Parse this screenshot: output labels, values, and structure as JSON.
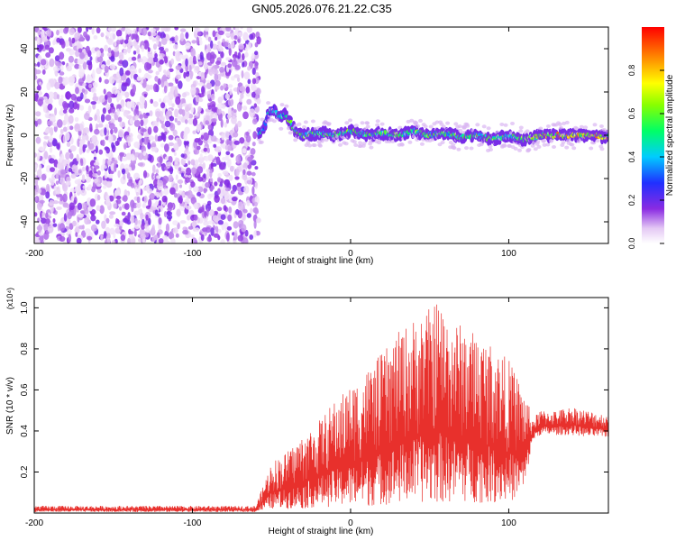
{
  "title": "GN05.2026.076.21.22.C35",
  "chart_data": [
    {
      "type": "heatmap",
      "xlabel": "Height of straight line (km)",
      "ylabel": "Frequency (Hz)",
      "xlim": [
        -200,
        163
      ],
      "ylim": [
        -50,
        50
      ],
      "xticks": [
        -200,
        -100,
        0,
        100
      ],
      "yticks": [
        -40,
        -20,
        0,
        20,
        40
      ],
      "colorbar": {
        "label": "Normalized spectral amplitude",
        "range": [
          0,
          1
        ],
        "ticks": [
          0.0,
          0.2,
          0.4,
          0.6,
          0.8
        ],
        "colormap": "rainbow (white-violet-blue-cyan-green-yellow-red)"
      },
      "noise_region_x": [
        -200,
        -58
      ],
      "signal_track": {
        "x": [
          -58,
          -55,
          -52,
          -48,
          -45,
          -42,
          -38,
          -35,
          -30,
          -20,
          -10,
          0,
          10,
          20,
          30,
          40,
          50,
          60,
          70,
          80,
          90,
          100,
          110,
          120,
          130,
          140,
          150,
          163
        ],
        "freq": [
          1,
          3,
          10,
          12,
          8,
          10,
          6,
          2,
          0,
          1,
          0,
          2,
          0,
          1,
          0,
          2,
          0,
          1,
          -1,
          0,
          -2,
          0,
          -2,
          0,
          0,
          0,
          0,
          -1
        ]
      }
    },
    {
      "type": "line",
      "xlabel": "Height of straight line (km)",
      "ylabel": "SNR (10 * v/v)",
      "multiplier": "(x10⁴)",
      "xlim": [
        -200,
        163
      ],
      "ylim": [
        0,
        1.05
      ],
      "xticks": [
        -200,
        -100,
        0,
        100
      ],
      "yticks": [
        0.2,
        0.4,
        0.6,
        0.8,
        1.0
      ],
      "color": "#e8302c",
      "envelope": {
        "x": [
          -200,
          -60,
          -50,
          -40,
          -30,
          -20,
          -10,
          0,
          10,
          20,
          30,
          40,
          50,
          55,
          60,
          70,
          80,
          90,
          100,
          110,
          115,
          120,
          130,
          140,
          150,
          163
        ],
        "low": [
          0.005,
          0.005,
          0.02,
          0.02,
          0.02,
          0.03,
          0.03,
          0.03,
          0.03,
          0.04,
          0.04,
          0.05,
          0.05,
          0.05,
          0.05,
          0.05,
          0.05,
          0.05,
          0.05,
          0.1,
          0.35,
          0.38,
          0.38,
          0.38,
          0.37,
          0.37
        ],
        "high": [
          0.035,
          0.035,
          0.25,
          0.3,
          0.38,
          0.45,
          0.55,
          0.62,
          0.7,
          0.78,
          0.88,
          0.95,
          1.0,
          1.05,
          0.98,
          0.92,
          0.88,
          0.82,
          0.75,
          0.6,
          0.46,
          0.5,
          0.5,
          0.52,
          0.5,
          0.48
        ]
      }
    }
  ]
}
